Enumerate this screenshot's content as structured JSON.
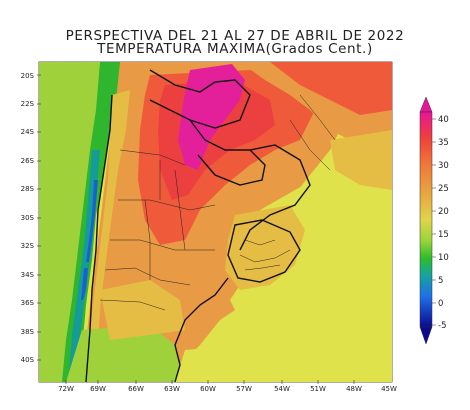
{
  "map": {
    "title_line1": "PERSPECTIVA DEL 21 AL 27 DE ABRIL DE 2022",
    "title_line2": "TEMPERATURA MAXIMA(Grados Cent.)",
    "lat_labels": [
      "20S",
      "22S",
      "24S",
      "26S",
      "28S",
      "30S",
      "32S",
      "34S",
      "36S",
      "38S",
      "40S"
    ],
    "lon_labels": [
      "72W",
      "69W",
      "66W",
      "63W",
      "60W",
      "57W",
      "54W",
      "51W",
      "48W",
      "45W"
    ]
  },
  "colorbar": {
    "labels": [
      "40",
      "35",
      "30",
      "25",
      "20",
      "15",
      "10",
      "5",
      "0",
      "-5"
    ],
    "colors": [
      "#e8149a",
      "#f0403a",
      "#f07a3a",
      "#e8a640",
      "#e0d448",
      "#99d43a",
      "#2dbd2a",
      "#16a4a0",
      "#1e6ee8",
      "#1428c8",
      "#0a0a90"
    ]
  },
  "colors": {
    "ocean": "#dfe24a",
    "land_base": "#e89a45",
    "hot": "#ee5a3a",
    "very_hot": "#ec4040",
    "extreme": "#e3209a",
    "mild": "#e5bd45",
    "cool_green": "#9fd23a",
    "green": "#2fb52e",
    "teal": "#169c98",
    "blue": "#1a5ed8"
  }
}
